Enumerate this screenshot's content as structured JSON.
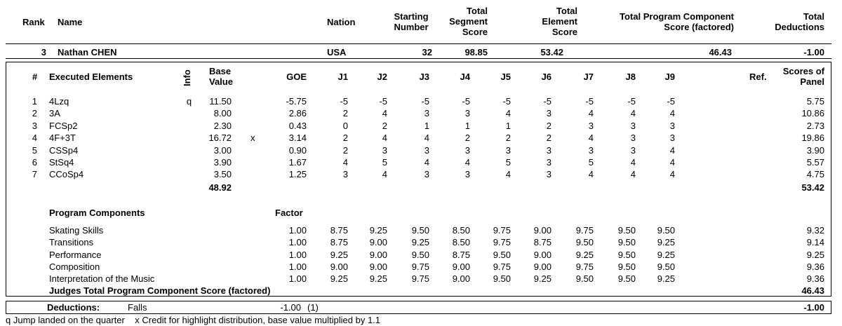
{
  "summary_header": {
    "rank": "Rank",
    "name": "Name",
    "nation": "Nation",
    "starting_number": [
      "Starting",
      "Number"
    ],
    "total_segment_score": [
      "Total",
      "Segment",
      "Score"
    ],
    "total_element_score": [
      "Total",
      "Element",
      "Score"
    ],
    "total_pcs": [
      "Total Program Component",
      "Score (factored)"
    ],
    "total_deductions": [
      "Total",
      "Deductions"
    ]
  },
  "skater": {
    "rank": "3",
    "name": "Nathan CHEN",
    "nation": "USA",
    "starting_number": "32",
    "total_segment_score": "98.85",
    "total_element_score": "53.42",
    "total_pcs": "46.43",
    "total_deductions": "-1.00"
  },
  "elements_header": {
    "num": "#",
    "executed": "Executed Elements",
    "info": "Info",
    "base_value": [
      "Base",
      "Value"
    ],
    "goe": "GOE",
    "judges": [
      "J1",
      "J2",
      "J3",
      "J4",
      "J5",
      "J6",
      "J7",
      "J8",
      "J9"
    ],
    "ref": "Ref.",
    "scores": [
      "Scores of",
      "Panel"
    ]
  },
  "elements": [
    {
      "num": "1",
      "name": "4Lzq",
      "info": "q",
      "base": "11.50",
      "x": "",
      "goe": "-5.75",
      "j": [
        "-5",
        "-5",
        "-5",
        "-5",
        "-5",
        "-5",
        "-5",
        "-5",
        "-5"
      ],
      "score": "5.75"
    },
    {
      "num": "2",
      "name": "3A",
      "info": "",
      "base": "8.00",
      "x": "",
      "goe": "2.86",
      "j": [
        "2",
        "4",
        "3",
        "3",
        "4",
        "3",
        "4",
        "4",
        "4"
      ],
      "score": "10.86"
    },
    {
      "num": "3",
      "name": "FCSp2",
      "info": "",
      "base": "2.30",
      "x": "",
      "goe": "0.43",
      "j": [
        "0",
        "2",
        "1",
        "1",
        "1",
        "2",
        "3",
        "3",
        "3"
      ],
      "score": "2.73"
    },
    {
      "num": "4",
      "name": "4F+3T",
      "info": "",
      "base": "16.72",
      "x": "x",
      "goe": "3.14",
      "j": [
        "2",
        "4",
        "4",
        "2",
        "2",
        "2",
        "4",
        "3",
        "3"
      ],
      "score": "19.86"
    },
    {
      "num": "5",
      "name": "CSSp4",
      "info": "",
      "base": "3.00",
      "x": "",
      "goe": "0.90",
      "j": [
        "2",
        "3",
        "3",
        "3",
        "3",
        "3",
        "3",
        "3",
        "4"
      ],
      "score": "3.90"
    },
    {
      "num": "6",
      "name": "StSq4",
      "info": "",
      "base": "3.90",
      "x": "",
      "goe": "1.67",
      "j": [
        "4",
        "5",
        "4",
        "4",
        "5",
        "3",
        "5",
        "4",
        "4"
      ],
      "score": "5.57"
    },
    {
      "num": "7",
      "name": "CCoSp4",
      "info": "",
      "base": "3.50",
      "x": "",
      "goe": "1.25",
      "j": [
        "3",
        "4",
        "3",
        "3",
        "4",
        "3",
        "4",
        "4",
        "4"
      ],
      "score": "4.75"
    }
  ],
  "elements_total_base": "48.92",
  "elements_total_score": "53.42",
  "components_header": {
    "title": "Program Components",
    "factor": "Factor"
  },
  "components": [
    {
      "name": "Skating Skills",
      "factor": "1.00",
      "j": [
        "8.75",
        "9.25",
        "9.50",
        "8.50",
        "9.75",
        "9.00",
        "9.75",
        "9.50",
        "9.50"
      ],
      "score": "9.32"
    },
    {
      "name": "Transitions",
      "factor": "1.00",
      "j": [
        "8.75",
        "9.00",
        "9.25",
        "8.50",
        "9.75",
        "8.75",
        "9.50",
        "9.50",
        "9.25"
      ],
      "score": "9.14"
    },
    {
      "name": "Performance",
      "factor": "1.00",
      "j": [
        "9.25",
        "9.00",
        "9.50",
        "8.75",
        "9.50",
        "9.00",
        "9.25",
        "9.50",
        "9.25"
      ],
      "score": "9.25"
    },
    {
      "name": "Composition",
      "factor": "1.00",
      "j": [
        "9.00",
        "9.00",
        "9.75",
        "9.00",
        "9.75",
        "9.00",
        "9.75",
        "9.50",
        "9.50"
      ],
      "score": "9.36"
    },
    {
      "name": "Interpretation of the Music",
      "factor": "1.00",
      "j": [
        "9.25",
        "9.25",
        "9.75",
        "9.00",
        "9.50",
        "9.25",
        "9.50",
        "9.50",
        "9.25"
      ],
      "score": "9.36"
    }
  ],
  "components_total_label": "Judges Total Program Component Score (factored)",
  "components_total": "46.43",
  "deductions": {
    "label": "Deductions:",
    "type": "Falls",
    "value": "-1.00",
    "count": "(1)",
    "total": "-1.00"
  },
  "footnote": "q Jump landed on the quarter    x Credit for highlight distribution, base value multiplied by 1.1"
}
